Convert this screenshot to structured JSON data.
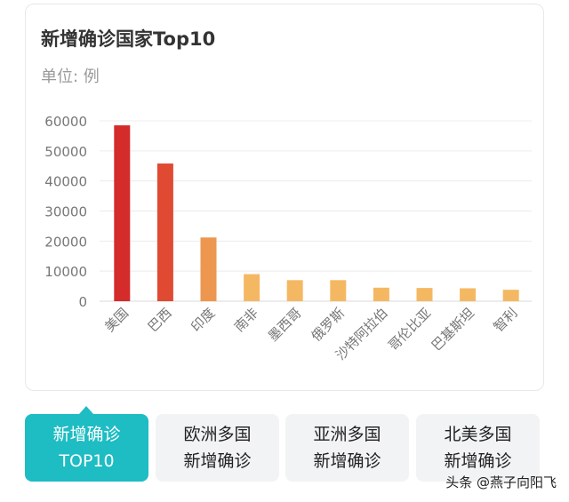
{
  "card": {
    "title": "新增确诊国家Top10",
    "unit": "单位: 例"
  },
  "chart_data": {
    "type": "bar",
    "title": "新增确诊国家Top10",
    "subtitle": "单位: 例",
    "categories": [
      "美国",
      "巴西",
      "印度",
      "南非",
      "墨西哥",
      "俄罗斯",
      "沙特阿拉伯",
      "哥伦比亚",
      "巴基斯坦",
      "智利"
    ],
    "values": [
      58500,
      45800,
      21200,
      9000,
      7000,
      7000,
      4500,
      4400,
      4300,
      3800
    ],
    "colors": [
      "#d42b2b",
      "#e04a33",
      "#ec9650",
      "#f5b862",
      "#f5b862",
      "#f5b862",
      "#f5b862",
      "#f5b862",
      "#f5b862",
      "#f5b862"
    ],
    "yticks": [
      "0",
      "10000",
      "20000",
      "30000",
      "40000",
      "50000",
      "60000"
    ],
    "ylim": [
      0,
      60000
    ],
    "grid": true
  },
  "tabs": [
    {
      "line1": "新增确诊",
      "line2": "TOP10",
      "active": true
    },
    {
      "line1": "欧洲多国",
      "line2": "新增确诊",
      "active": false
    },
    {
      "line1": "亚洲多国",
      "line2": "新增确诊",
      "active": false
    },
    {
      "line1": "北美多国",
      "line2": "新增确诊",
      "active": false
    }
  ],
  "watermark": "头条 @燕子向阳飞"
}
